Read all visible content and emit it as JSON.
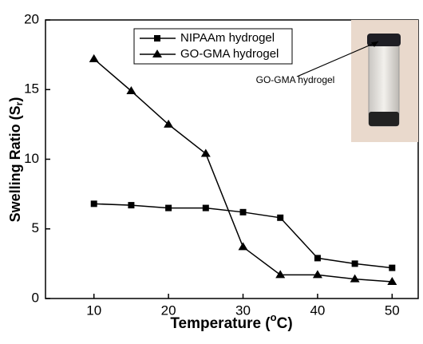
{
  "chart_data": {
    "type": "line",
    "x_label": {
      "text": "Temperature (",
      "sup": "o",
      "end": "C)"
    },
    "y_label": {
      "text": "Swelling Ratio (S",
      "sub": "r",
      "end": ")"
    },
    "annotations": [
      "GO-GMA hydrogel"
    ],
    "x": [
      10,
      15,
      20,
      25,
      30,
      35,
      40,
      45,
      50
    ],
    "series": [
      {
        "name": "NIPAAm hydrogel",
        "color": "#000000",
        "marker": "square",
        "values": [
          6.8,
          6.7,
          6.5,
          6.5,
          6.2,
          5.8,
          2.9,
          2.5,
          2.2
        ]
      },
      {
        "name": "GO-GMA hydrogel",
        "color": "#000000",
        "marker": "triangle",
        "values": [
          17.2,
          14.9,
          12.5,
          10.4,
          3.7,
          1.7,
          1.7,
          1.4,
          1.2
        ]
      }
    ],
    "xlim": [
      3.5,
      53.5
    ],
    "xticks": [
      10,
      20,
      30,
      40,
      50
    ],
    "ylim": [
      0,
      20
    ],
    "yticks": [
      0,
      5,
      10,
      15,
      20
    ],
    "legend": "upper left"
  }
}
